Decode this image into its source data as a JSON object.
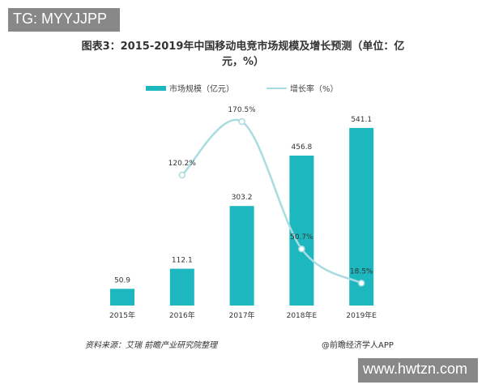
{
  "watermarks": {
    "top_left": "TG: MYYJJPP",
    "bottom_right": "www.hwtzn.com"
  },
  "chart_data": {
    "type": "bar+line",
    "title": "图表3：2015-2019年中国移动电竞市场规模及增长预测（单位：亿元，%）",
    "categories": [
      "2015年",
      "2016年",
      "2017年",
      "2018年E",
      "2019年E"
    ],
    "series": [
      {
        "name": "市场规模（亿元）",
        "type": "bar",
        "color": "#1db8bf",
        "values": [
          50.9,
          112.1,
          303.2,
          456.8,
          541.1
        ],
        "labels": [
          "50.9",
          "112.1",
          "303.2",
          "456.8",
          "541.1"
        ]
      },
      {
        "name": "增长率（%）",
        "type": "line",
        "color": "#a8dce0",
        "values": [
          null,
          120.2,
          170.5,
          50.7,
          18.5
        ],
        "labels": [
          "",
          "120.2%",
          "170.5%",
          "50.7%",
          "18.5%"
        ]
      }
    ],
    "legend": "top-center",
    "grid": false
  },
  "footer": {
    "source": "资料来源：艾瑞 前瞻产业研究院整理",
    "brand": "@前瞻经济学人APP"
  }
}
